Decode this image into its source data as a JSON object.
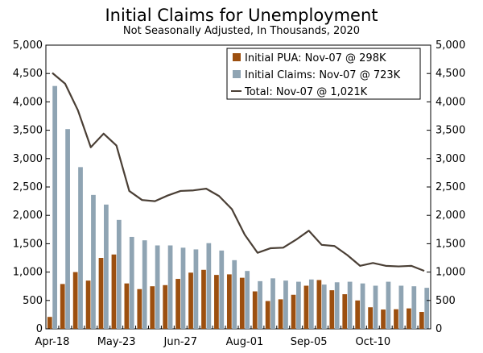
{
  "chart_data": {
    "type": "bar",
    "title": "Initial Claims for Unemployment",
    "subtitle": "Not Seasonally Adjusted, In Thousands, 2020",
    "xlabel": "",
    "ylabel": "",
    "ylim": [
      0,
      5000
    ],
    "y_ticks": [
      "0",
      "500",
      "1,000",
      "1,500",
      "2,000",
      "2,500",
      "3,000",
      "3,500",
      "4,000",
      "4,500",
      "5,000"
    ],
    "x_tick_labels": [
      "Apr-18",
      "May-23",
      "Jun-27",
      "Aug-01",
      "Sep-05",
      "Oct-10"
    ],
    "x_tick_label_indices": [
      0,
      5,
      10,
      15,
      20,
      25
    ],
    "grid": false,
    "legend_position": "top-right",
    "categories": [
      "Apr-18",
      "Apr-25",
      "May-02",
      "May-09",
      "May-16",
      "May-23",
      "May-30",
      "Jun-06",
      "Jun-13",
      "Jun-20",
      "Jun-27",
      "Jul-04",
      "Jul-11",
      "Jul-18",
      "Jul-25",
      "Aug-01",
      "Aug-08",
      "Aug-15",
      "Aug-22",
      "Aug-29",
      "Sep-05",
      "Sep-12",
      "Sep-19",
      "Sep-26",
      "Oct-03",
      "Oct-10",
      "Oct-17",
      "Oct-24",
      "Oct-31",
      "Nov-07"
    ],
    "series": [
      {
        "name": "Initial PUA: Nov-07 @ 298K",
        "kind": "bar",
        "color": "#9c4f0f",
        "values": [
          210,
          790,
          1000,
          850,
          1250,
          1310,
          800,
          700,
          750,
          770,
          880,
          990,
          1040,
          950,
          960,
          900,
          660,
          490,
          520,
          600,
          760,
          860,
          680,
          610,
          500,
          380,
          340,
          345,
          360,
          298
        ]
      },
      {
        "name": "Initial Claims: Nov-07 @ 723K",
        "kind": "bar",
        "color": "#8fa4b3",
        "values": [
          4280,
          3520,
          2850,
          2360,
          2190,
          1920,
          1620,
          1560,
          1470,
          1470,
          1430,
          1400,
          1510,
          1380,
          1210,
          1020,
          840,
          890,
          850,
          830,
          870,
          780,
          820,
          830,
          800,
          760,
          830,
          760,
          750,
          723
        ]
      },
      {
        "name": "Total: Nov-07 @ 1,021K",
        "kind": "line",
        "color": "#4a3f35",
        "values": [
          4510,
          4320,
          3850,
          3200,
          3440,
          3230,
          2430,
          2270,
          2250,
          2350,
          2430,
          2440,
          2470,
          2340,
          2110,
          1660,
          1340,
          1420,
          1430,
          1570,
          1730,
          1480,
          1460,
          1300,
          1110,
          1160,
          1110,
          1100,
          1110,
          1021
        ]
      }
    ]
  }
}
